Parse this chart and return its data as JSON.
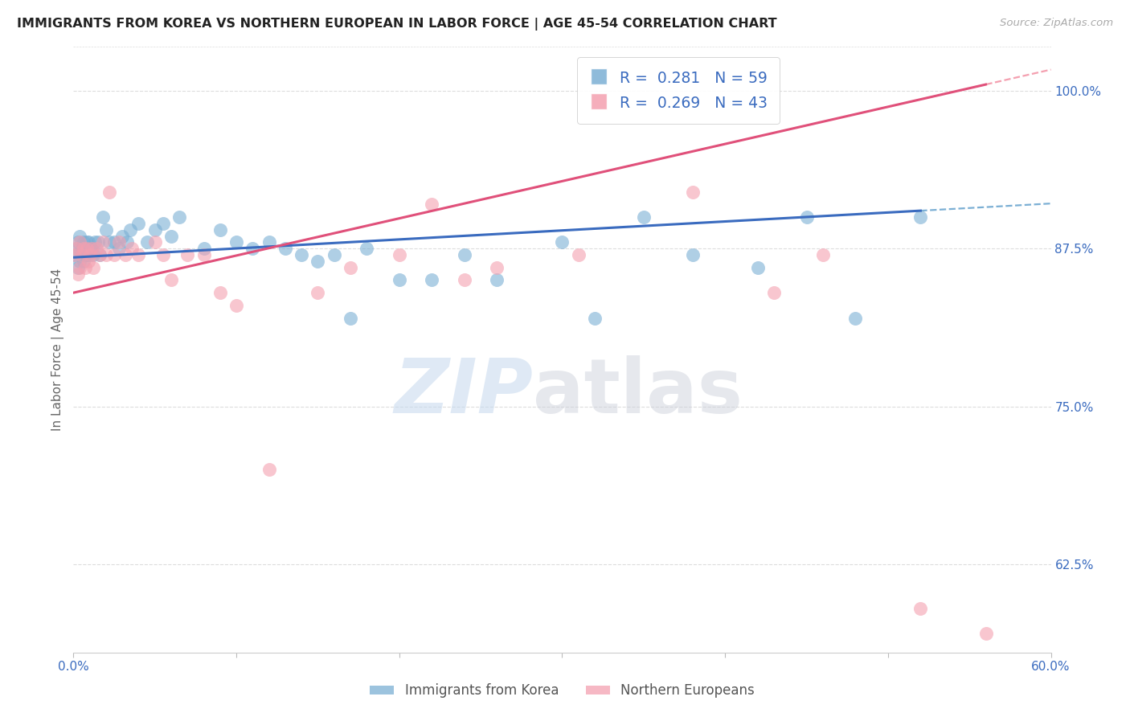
{
  "title": "IMMIGRANTS FROM KOREA VS NORTHERN EUROPEAN IN LABOR FORCE | AGE 45-54 CORRELATION CHART",
  "source": "Source: ZipAtlas.com",
  "ylabel": "In Labor Force | Age 45-54",
  "xlim": [
    0.0,
    0.6
  ],
  "ylim": [
    0.555,
    1.035
  ],
  "yticks": [
    0.625,
    0.75,
    0.875,
    1.0
  ],
  "ytick_labels": [
    "62.5%",
    "75.0%",
    "87.5%",
    "100.0%"
  ],
  "xtick_vals": [
    0.0,
    0.1,
    0.2,
    0.3,
    0.4,
    0.5,
    0.6
  ],
  "xtick_labels": [
    "0.0%",
    "",
    "",
    "",
    "",
    "",
    "60.0%"
  ],
  "korea_color": "#7bafd4",
  "northern_color": "#f4a0b0",
  "line_korea_color": "#3a6bbf",
  "line_northern_color": "#e0507a",
  "korea_R": 0.281,
  "korea_N": 59,
  "northern_R": 0.269,
  "northern_N": 43,
  "background_color": "#ffffff",
  "grid_color": "#dddddd",
  "accent_color": "#3a6bbf",
  "legend_label_korea": "Immigrants from Korea",
  "legend_label_northern": "Northern Europeans",
  "korea_x": [
    0.001,
    0.002,
    0.003,
    0.003,
    0.004,
    0.004,
    0.005,
    0.005,
    0.006,
    0.006,
    0.007,
    0.007,
    0.008,
    0.008,
    0.009,
    0.01,
    0.01,
    0.011,
    0.012,
    0.013,
    0.015,
    0.016,
    0.018,
    0.02,
    0.022,
    0.025,
    0.028,
    0.03,
    0.033,
    0.035,
    0.04,
    0.045,
    0.05,
    0.055,
    0.06,
    0.065,
    0.08,
    0.09,
    0.1,
    0.11,
    0.12,
    0.13,
    0.14,
    0.15,
    0.16,
    0.17,
    0.18,
    0.2,
    0.22,
    0.24,
    0.26,
    0.3,
    0.32,
    0.35,
    0.38,
    0.42,
    0.45,
    0.48,
    0.52
  ],
  "korea_y": [
    0.87,
    0.875,
    0.86,
    0.88,
    0.865,
    0.885,
    0.875,
    0.87,
    0.88,
    0.865,
    0.875,
    0.87,
    0.88,
    0.87,
    0.88,
    0.875,
    0.87,
    0.875,
    0.87,
    0.88,
    0.88,
    0.87,
    0.9,
    0.89,
    0.88,
    0.88,
    0.875,
    0.885,
    0.88,
    0.89,
    0.895,
    0.88,
    0.89,
    0.895,
    0.885,
    0.9,
    0.875,
    0.89,
    0.88,
    0.875,
    0.88,
    0.875,
    0.87,
    0.865,
    0.87,
    0.82,
    0.875,
    0.85,
    0.85,
    0.87,
    0.85,
    0.88,
    0.82,
    0.9,
    0.87,
    0.86,
    0.9,
    0.82,
    0.9
  ],
  "northern_x": [
    0.001,
    0.002,
    0.003,
    0.004,
    0.004,
    0.005,
    0.006,
    0.007,
    0.008,
    0.009,
    0.01,
    0.011,
    0.012,
    0.014,
    0.016,
    0.018,
    0.02,
    0.022,
    0.025,
    0.028,
    0.032,
    0.036,
    0.04,
    0.05,
    0.055,
    0.06,
    0.07,
    0.08,
    0.09,
    0.1,
    0.12,
    0.15,
    0.17,
    0.2,
    0.22,
    0.24,
    0.26,
    0.31,
    0.38,
    0.43,
    0.46,
    0.52,
    0.56
  ],
  "northern_y": [
    0.87,
    0.875,
    0.855,
    0.86,
    0.88,
    0.87,
    0.875,
    0.86,
    0.875,
    0.865,
    0.87,
    0.875,
    0.86,
    0.875,
    0.87,
    0.88,
    0.87,
    0.92,
    0.87,
    0.88,
    0.87,
    0.875,
    0.87,
    0.88,
    0.87,
    0.85,
    0.87,
    0.87,
    0.84,
    0.83,
    0.7,
    0.84,
    0.86,
    0.87,
    0.91,
    0.85,
    0.86,
    0.87,
    0.92,
    0.84,
    0.87,
    0.59,
    0.57
  ],
  "korea_line_x0": 0.0,
  "korea_line_x1": 0.52,
  "korea_line_y0": 0.868,
  "korea_line_y1": 0.905,
  "northern_line_x0": 0.0,
  "northern_line_x1": 0.56,
  "northern_line_y0": 0.84,
  "northern_line_y1": 1.005
}
